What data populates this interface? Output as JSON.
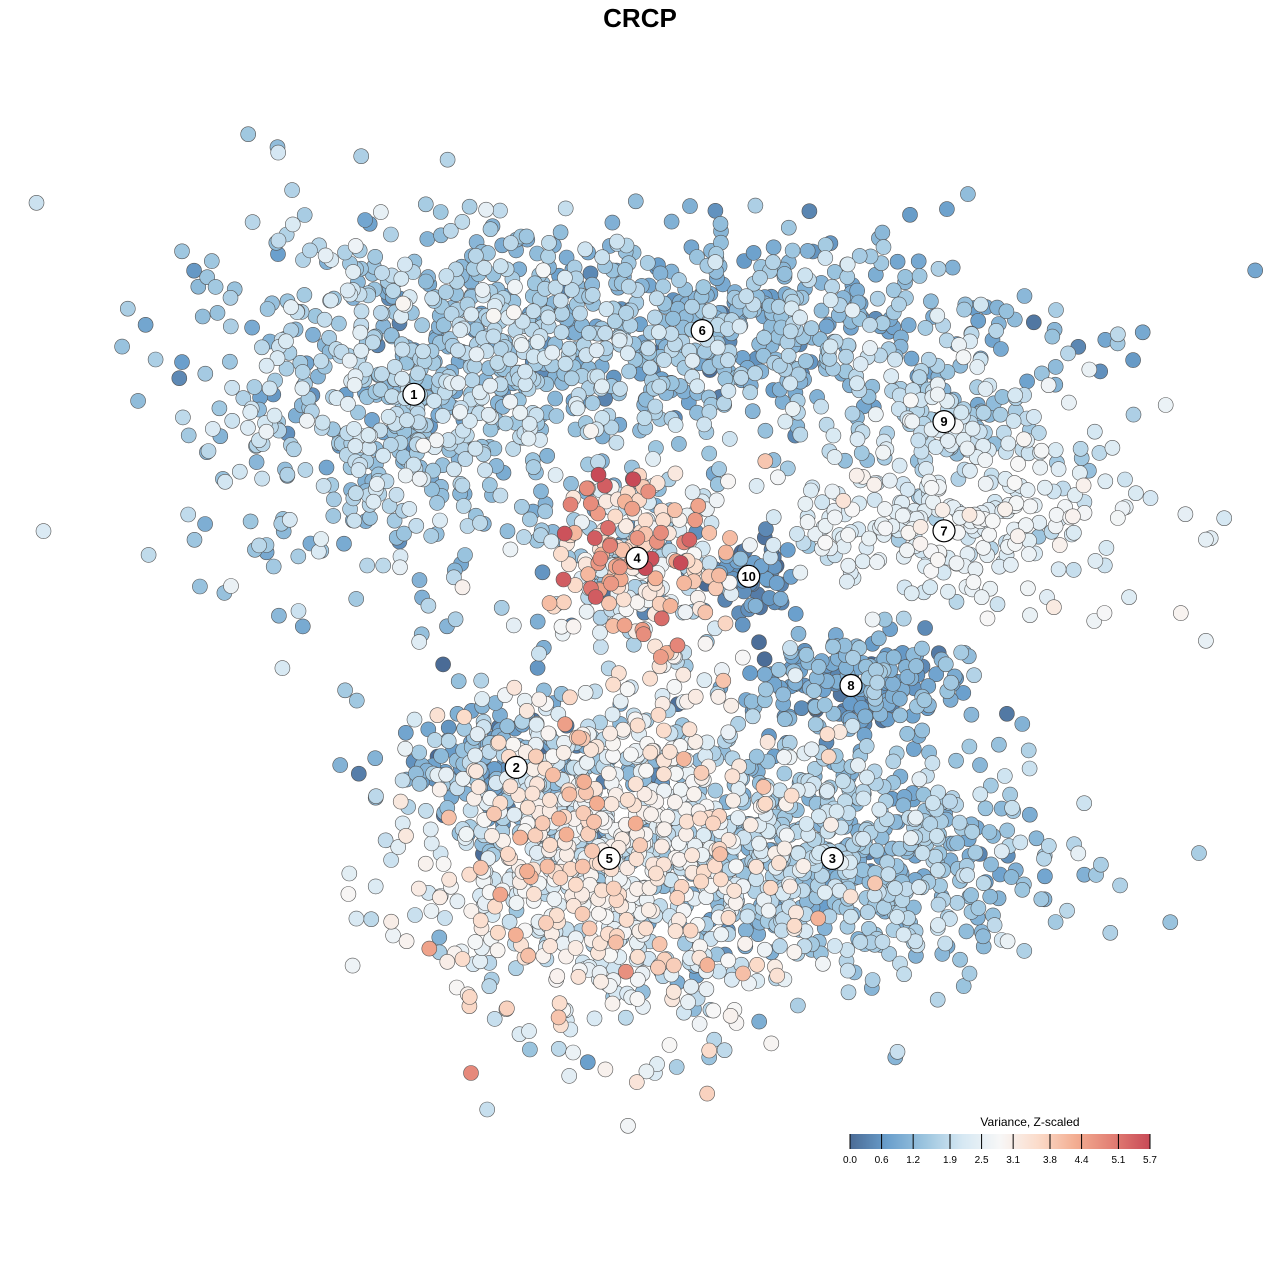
{
  "chart_data": {
    "type": "scatter",
    "title": "CRCP",
    "xlabel": "",
    "ylabel": "",
    "grid": false,
    "xlim": [
      -50,
      50
    ],
    "ylim": [
      -50,
      50
    ],
    "legend": {
      "title": "Variance, Z-scaled",
      "placement": "bottom-right",
      "range": [
        0.0,
        5.7
      ],
      "ticks": [
        "0.0",
        "0.6",
        "1.2",
        "1.9",
        "2.5",
        "3.1",
        "3.8",
        "4.4",
        "5.1",
        "5.7"
      ],
      "colors": [
        "#4a6b96",
        "#6a9fcc",
        "#9cc5df",
        "#d6e8f3",
        "#f7f7f7",
        "#fbdccb",
        "#f3ae92",
        "#e27f74",
        "#c84a57"
      ]
    },
    "clusters": [
      {
        "label": "1",
        "x": -27,
        "y": 27,
        "sx": 12,
        "sy": 10,
        "n": 700,
        "mean": 1.6,
        "sd": 0.45
      },
      {
        "label": "6",
        "x": 4,
        "y": 34,
        "sx": 18,
        "sy": 5.5,
        "n": 650,
        "mean": 1.3,
        "sd": 0.45
      },
      {
        "label": "9",
        "x": 30,
        "y": 24,
        "sx": 8,
        "sy": 3,
        "n": 140,
        "mean": 1.9,
        "sd": 0.4
      },
      {
        "label": "7",
        "x": 30,
        "y": 12,
        "sx": 11,
        "sy": 4,
        "n": 260,
        "mean": 2.4,
        "sd": 0.35
      },
      {
        "label": "4",
        "x": -3,
        "y": 9,
        "sx": 4.5,
        "sy": 4.5,
        "n": 240,
        "mean": 3.2,
        "sd": 1.2
      },
      {
        "label": "10",
        "x": 9,
        "y": 7,
        "sx": 2.2,
        "sy": 2.2,
        "n": 60,
        "mean": 0.5,
        "sd": 0.3
      },
      {
        "label": "8",
        "x": 20,
        "y": -5,
        "sx": 6,
        "sy": 3,
        "n": 180,
        "mean": 0.9,
        "sd": 0.4
      },
      {
        "label": "2",
        "x": -16,
        "y": -14,
        "sx": 7,
        "sy": 4,
        "n": 190,
        "mean": 1.1,
        "sd": 0.6
      },
      {
        "label": "3",
        "x": 18,
        "y": -24,
        "sx": 11,
        "sy": 7,
        "n": 650,
        "mean": 1.5,
        "sd": 0.4
      },
      {
        "label": "5",
        "x": -6,
        "y": -24,
        "sx": 10,
        "sy": 10,
        "n": 900,
        "mean": 2.6,
        "sd": 0.7
      }
    ]
  }
}
